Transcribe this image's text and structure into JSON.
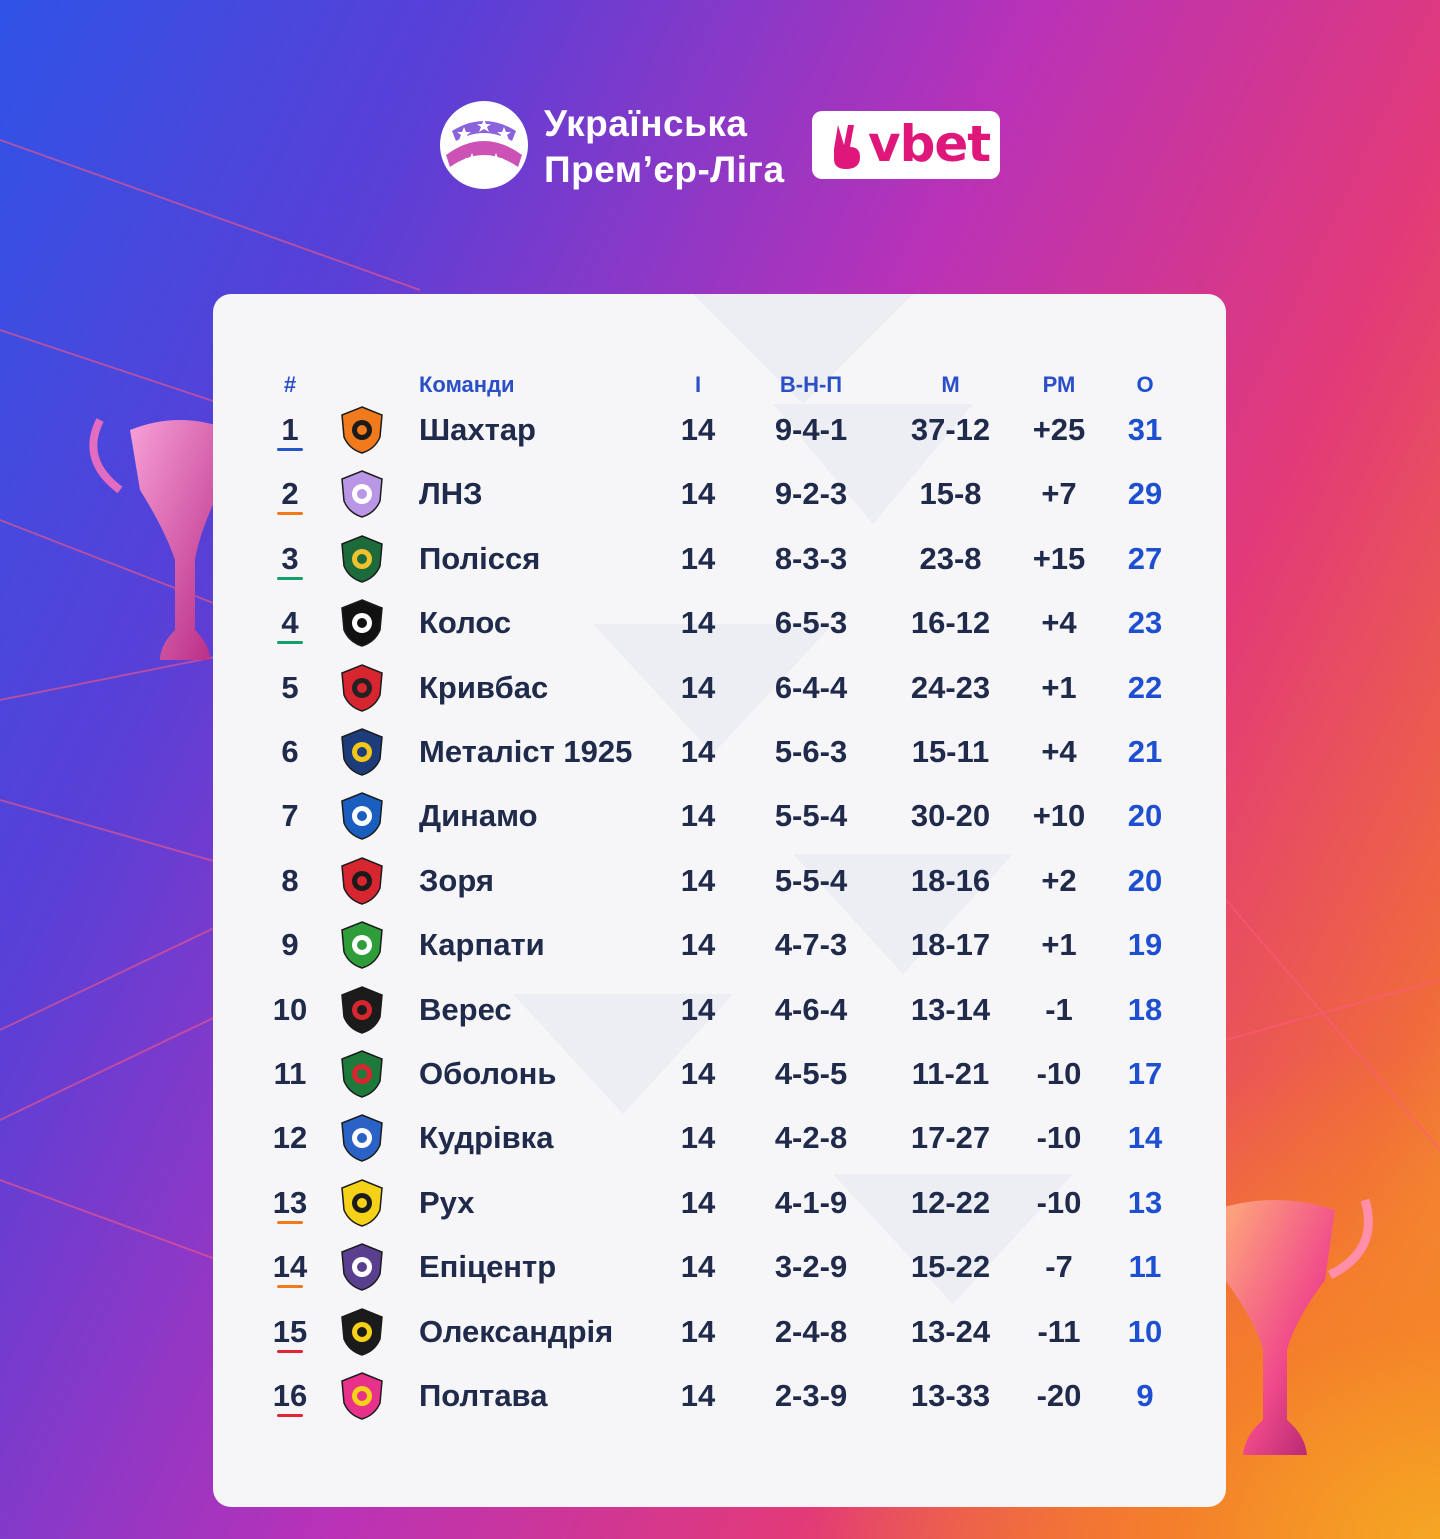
{
  "header": {
    "league_line1": "Українська",
    "league_line2": "Прем’єр-Ліга",
    "sponsor": "vbet"
  },
  "table": {
    "columns": {
      "pos": "#",
      "team": "Команди",
      "games": "І",
      "wdl": "В-Н-П",
      "goals": "М",
      "diff": "РМ",
      "points": "О"
    },
    "rows": [
      {
        "pos": "1",
        "team": "Шахтар",
        "games": "14",
        "wdl": "9-4-1",
        "goals": "37-12",
        "diff": "+25",
        "points": "31",
        "zone_color": "#1f57c9",
        "logo": "shakhtar-logo",
        "logo_colors": [
          "#f07a1c",
          "#1b1b1b"
        ]
      },
      {
        "pos": "2",
        "team": "ЛНЗ",
        "games": "14",
        "wdl": "9-2-3",
        "goals": "15-8",
        "diff": "+7",
        "points": "29",
        "zone_color": "#f07a1c",
        "logo": "lnz-logo",
        "logo_colors": [
          "#b996e6",
          "#ffffff"
        ]
      },
      {
        "pos": "3",
        "team": "Полісся",
        "games": "14",
        "wdl": "8-3-3",
        "goals": "23-8",
        "diff": "+15",
        "points": "27",
        "zone_color": "#13a06a",
        "logo": "polissia-logo",
        "logo_colors": [
          "#1d6b3a",
          "#f2c12e"
        ]
      },
      {
        "pos": "4",
        "team": "Колос",
        "games": "14",
        "wdl": "6-5-3",
        "goals": "16-12",
        "diff": "+4",
        "points": "23",
        "zone_color": "#13a06a",
        "logo": "kolos-logo",
        "logo_colors": [
          "#111111",
          "#ffffff"
        ]
      },
      {
        "pos": "5",
        "team": "Кривбас",
        "games": "14",
        "wdl": "6-4-4",
        "goals": "24-23",
        "diff": "+1",
        "points": "22",
        "zone_color": "",
        "logo": "kryvbas-logo",
        "logo_colors": [
          "#d7262f",
          "#222222"
        ]
      },
      {
        "pos": "6",
        "team": "Металіст 1925",
        "games": "14",
        "wdl": "5-6-3",
        "goals": "15-11",
        "diff": "+4",
        "points": "21",
        "zone_color": "",
        "logo": "metalist-logo",
        "logo_colors": [
          "#1d3d7a",
          "#f5c518"
        ]
      },
      {
        "pos": "7",
        "team": "Динамо",
        "games": "14",
        "wdl": "5-5-4",
        "goals": "30-20",
        "diff": "+10",
        "points": "20",
        "zone_color": "",
        "logo": "dynamo-logo",
        "logo_colors": [
          "#1a5fbf",
          "#ffffff"
        ]
      },
      {
        "pos": "8",
        "team": "Зоря",
        "games": "14",
        "wdl": "5-5-4",
        "goals": "18-16",
        "diff": "+2",
        "points": "20",
        "zone_color": "",
        "logo": "zorya-logo",
        "logo_colors": [
          "#d7262f",
          "#1b1b1b"
        ]
      },
      {
        "pos": "9",
        "team": "Карпати",
        "games": "14",
        "wdl": "4-7-3",
        "goals": "18-17",
        "diff": "+1",
        "points": "19",
        "zone_color": "",
        "logo": "karpaty-logo",
        "logo_colors": [
          "#2f9e3a",
          "#ffffff"
        ]
      },
      {
        "pos": "10",
        "team": "Верес",
        "games": "14",
        "wdl": "4-6-4",
        "goals": "13-14",
        "diff": "-1",
        "points": "18",
        "zone_color": "",
        "logo": "veres-logo",
        "logo_colors": [
          "#1b1b1b",
          "#d7262f"
        ]
      },
      {
        "pos": "11",
        "team": "Оболонь",
        "games": "14",
        "wdl": "4-5-5",
        "goals": "11-21",
        "diff": "-10",
        "points": "17",
        "zone_color": "",
        "logo": "obolon-logo",
        "logo_colors": [
          "#1d7a3a",
          "#d7262f"
        ]
      },
      {
        "pos": "12",
        "team": "Кудрівка",
        "games": "14",
        "wdl": "4-2-8",
        "goals": "17-27",
        "diff": "-10",
        "points": "14",
        "zone_color": "",
        "logo": "kudrivka-logo",
        "logo_colors": [
          "#2a62c6",
          "#ffffff"
        ]
      },
      {
        "pos": "13",
        "team": "Рух",
        "games": "14",
        "wdl": "4-1-9",
        "goals": "12-22",
        "diff": "-10",
        "points": "13",
        "zone_color": "#f07a1c",
        "logo": "rukh-logo",
        "logo_colors": [
          "#f5d218",
          "#1b1b1b"
        ]
      },
      {
        "pos": "14",
        "team": "Епіцентр",
        "games": "14",
        "wdl": "3-2-9",
        "goals": "15-22",
        "diff": "-7",
        "points": "11",
        "zone_color": "#f07a1c",
        "logo": "epicentr-logo",
        "logo_colors": [
          "#5b3f8f",
          "#ffffff"
        ]
      },
      {
        "pos": "15",
        "team": "Олександрія",
        "games": "14",
        "wdl": "2-4-8",
        "goals": "13-24",
        "diff": "-11",
        "points": "10",
        "zone_color": "#e0243a",
        "logo": "oleksandriia-logo",
        "logo_colors": [
          "#1b1b1b",
          "#f5d218"
        ]
      },
      {
        "pos": "16",
        "team": "Полтава",
        "games": "14",
        "wdl": "2-3-9",
        "goals": "13-33",
        "diff": "-20",
        "points": "9",
        "zone_color": "#e0243a",
        "logo": "poltava-logo",
        "logo_colors": [
          "#e8318a",
          "#f5d218"
        ]
      }
    ]
  }
}
